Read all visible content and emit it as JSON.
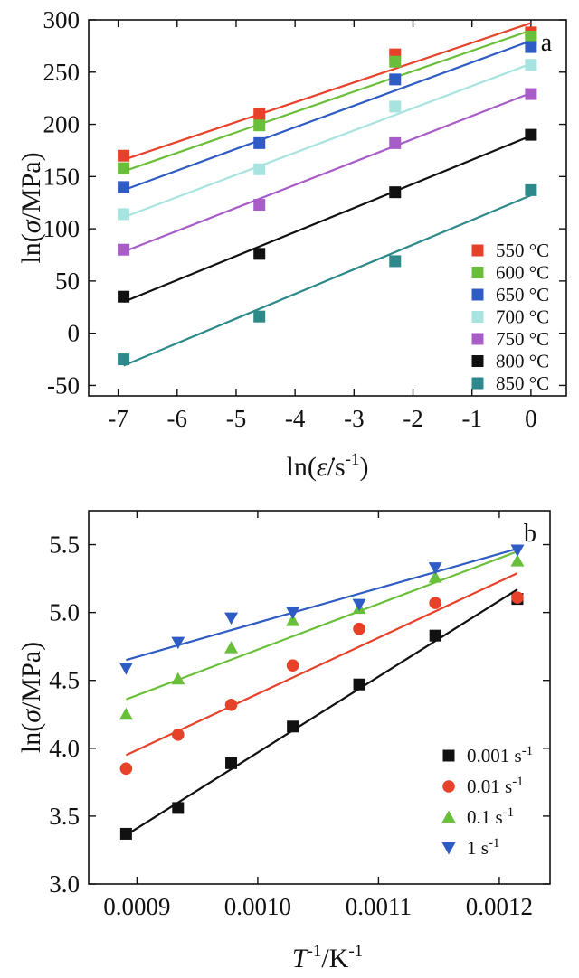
{
  "chart_data": [
    {
      "type": "scatter",
      "panel_label": "a",
      "xlim": [
        -7.5,
        0.6
      ],
      "ylim": [
        -60,
        300
      ],
      "xticks": [
        -7,
        -6,
        -5,
        -4,
        -3,
        -2,
        -1,
        0
      ],
      "yticks": [
        -50,
        0,
        50,
        100,
        150,
        200,
        250,
        300
      ],
      "xticklabels": [
        "-7",
        "-6",
        "-5",
        "-4",
        "-3",
        "-2",
        "-1",
        "0"
      ],
      "yticklabels": [
        "-50",
        "0",
        "50",
        "100",
        "150",
        "200",
        "250",
        "300"
      ],
      "xlabel": {
        "pre": "ln(",
        "mid": "ε̇",
        "post": "/s",
        "sup": "-1",
        "end": ")"
      },
      "ylabel": {
        "pre": "ln(",
        "mid": "σ",
        "post": "/MPa)"
      },
      "legend_position": "bottom-right",
      "marker": "square",
      "fit_lines": true,
      "x": [
        -6.908,
        -4.605,
        -2.303,
        0
      ],
      "series": [
        {
          "name": "550 °C",
          "color": "#e8412a",
          "values": [
            170,
            210,
            267,
            288
          ],
          "fit": [
            166,
            297
          ]
        },
        {
          "name": "600 °C",
          "color": "#6abf3a",
          "values": [
            158,
            199,
            260,
            284
          ],
          "fit": [
            155,
            290
          ]
        },
        {
          "name": "650 °C",
          "color": "#2f5cc4",
          "values": [
            140,
            182,
            243,
            274
          ],
          "fit": [
            137,
            280
          ]
        },
        {
          "name": "700 °C",
          "color": "#a8e4df",
          "values": [
            114,
            157,
            217,
            257
          ],
          "fit": [
            111,
            258
          ]
        },
        {
          "name": "750 °C",
          "color": "#a85cc8",
          "values": [
            80,
            123,
            182,
            229
          ],
          "fit": [
            78,
            230
          ]
        },
        {
          "name": "800 °C",
          "color": "#111111",
          "values": [
            35,
            76,
            135,
            190
          ],
          "fit": [
            30,
            189
          ]
        },
        {
          "name": "850 °C",
          "color": "#2e8a8a",
          "values": [
            -25,
            16,
            69,
            137
          ],
          "fit": [
            -31,
            132
          ]
        }
      ]
    },
    {
      "type": "scatter",
      "panel_label": "b",
      "xlim": [
        0.00086,
        0.001242
      ],
      "ylim": [
        3.0,
        5.75
      ],
      "xticks": [
        0.0009,
        0.001,
        0.0011,
        0.0012
      ],
      "yticks": [
        3.0,
        3.5,
        4.0,
        4.5,
        5.0,
        5.5
      ],
      "xticklabels": [
        "0.0009",
        "0.0010",
        "0.0011",
        "0.0012"
      ],
      "yticklabels": [
        "3.0",
        "3.5",
        "4.0",
        "4.5",
        "5.0",
        "5.5"
      ],
      "xlabel": {
        "pre": "T",
        "sup1": "-1",
        "mid": "/K",
        "sup2": "-1"
      },
      "ylabel": {
        "pre": "ln(",
        "mid": "σ",
        "post": "/MPa)"
      },
      "legend_position": "bottom-right",
      "fit_lines": true,
      "x": [
        0.000891,
        0.000934,
        0.000978,
        0.001029,
        0.001084,
        0.001147,
        0.001215
      ],
      "series": [
        {
          "name": "0.001 s",
          "unit_sup": "-1",
          "marker": "square",
          "color": "#111111",
          "values": [
            3.37,
            3.56,
            3.89,
            4.16,
            4.47,
            4.83,
            5.1
          ],
          "fit": [
            3.36,
            5.17
          ]
        },
        {
          "name": "0.01 s",
          "unit_sup": "-1",
          "marker": "circle",
          "color": "#e8412a",
          "values": [
            3.85,
            4.1,
            4.32,
            4.61,
            4.88,
            5.07,
            5.11
          ],
          "fit": [
            3.95,
            5.29
          ]
        },
        {
          "name": "0.1 s",
          "unit_sup": "-1",
          "marker": "triangle-up",
          "color": "#6abf3a",
          "values": [
            4.25,
            4.51,
            4.74,
            4.94,
            5.03,
            5.26,
            5.38
          ],
          "fit": [
            4.36,
            5.45
          ]
        },
        {
          "name": "1 s",
          "unit_sup": "-1",
          "marker": "triangle-down",
          "color": "#2f5cc4",
          "values": [
            4.59,
            4.78,
            4.96,
            5.0,
            5.06,
            5.33,
            5.46
          ],
          "fit": [
            4.65,
            5.47
          ]
        }
      ]
    }
  ]
}
